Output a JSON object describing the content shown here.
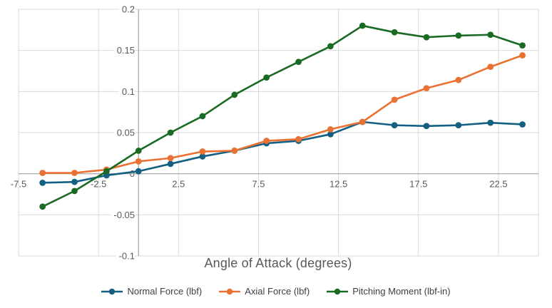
{
  "chart_data": {
    "type": "line",
    "title": "",
    "xlabel": "Angle of Attack (degrees)",
    "ylabel": "",
    "xlim": [
      -7.5,
      25
    ],
    "ylim": [
      -0.1,
      0.2
    ],
    "grid": true,
    "legend_position": "bottom",
    "x_ticks": [
      "-7.5",
      "-2.5",
      "2.5",
      "7.5",
      "12.5",
      "17.5",
      "22.5"
    ],
    "y_ticks": [
      "0.2",
      "0.15",
      "0.1",
      "0.05",
      "0",
      "-0.05",
      "-0.1"
    ],
    "x": [
      -6,
      -4,
      -2,
      0,
      2,
      4,
      6,
      8,
      10,
      12,
      14,
      16,
      18,
      20,
      22,
      24
    ],
    "series": [
      {
        "name": "Normal Force (lbf)",
        "color": "#156082",
        "values": [
          -0.011,
          -0.01,
          -0.002,
          0.003,
          0.012,
          0.021,
          0.028,
          0.037,
          0.04,
          0.048,
          0.063,
          0.059,
          0.058,
          0.059,
          0.062,
          0.06
        ]
      },
      {
        "name": "Axial Force (lbf)",
        "color": "#E97132",
        "values": [
          0.001,
          0.001,
          0.005,
          0.015,
          0.019,
          0.027,
          0.028,
          0.04,
          0.042,
          0.054,
          0.063,
          0.09,
          0.104,
          0.114,
          0.13,
          0.144
        ]
      },
      {
        "name": "Pitching Moment (lbf-in)",
        "color": "#196B24",
        "values": [
          -0.04,
          -0.021,
          0.003,
          0.028,
          0.05,
          0.07,
          0.096,
          0.117,
          0.136,
          0.155,
          0.18,
          0.172,
          0.166,
          0.168,
          0.169,
          0.156
        ]
      }
    ]
  },
  "colors": {
    "background": "#FFFFFF",
    "gridline": "#D9D9D9",
    "axis_line": "#A6A6A6",
    "tick_label": "#595959",
    "axis_title": "#595959",
    "legend_text": "#3F3F3F"
  }
}
